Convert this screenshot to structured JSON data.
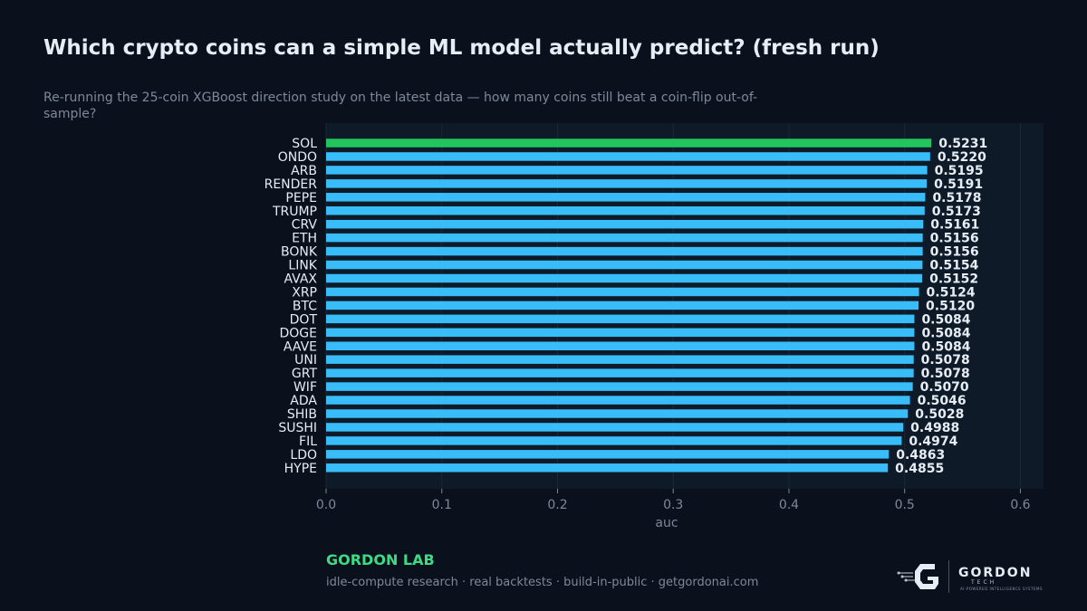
{
  "header": {
    "title": "Which crypto coins can a simple ML model actually predict? (fresh run)",
    "subtitle": "Re-running the 25-coin XGBoost direction study on the latest data — how many coins still beat a coin-flip out-of-sample?"
  },
  "chart_data": {
    "type": "bar",
    "orientation": "horizontal",
    "categories": [
      "SOL",
      "ONDO",
      "ARB",
      "RENDER",
      "PEPE",
      "TRUMP",
      "CRV",
      "ETH",
      "BONK",
      "LINK",
      "AVAX",
      "XRP",
      "BTC",
      "DOT",
      "DOGE",
      "AAVE",
      "UNI",
      "GRT",
      "WIF",
      "ADA",
      "SHIB",
      "SUSHI",
      "FIL",
      "LDO",
      "HYPE"
    ],
    "values": [
      0.5231,
      0.522,
      0.5195,
      0.5191,
      0.5178,
      0.5173,
      0.5161,
      0.5156,
      0.5156,
      0.5154,
      0.5152,
      0.5124,
      0.512,
      0.5084,
      0.5084,
      0.5084,
      0.5078,
      0.5078,
      0.507,
      0.5046,
      0.5028,
      0.4988,
      0.4974,
      0.4863,
      0.4855
    ],
    "value_labels": [
      "0.5231",
      "0.5220",
      "0.5195",
      "0.5191",
      "0.5178",
      "0.5173",
      "0.5161",
      "0.5156",
      "0.5156",
      "0.5154",
      "0.5152",
      "0.5124",
      "0.5120",
      "0.5084",
      "0.5084",
      "0.5084",
      "0.5078",
      "0.5078",
      "0.5070",
      "0.5046",
      "0.5028",
      "0.4988",
      "0.4974",
      "0.4863",
      "0.4855"
    ],
    "highlight_index": 0,
    "xlabel": "auc",
    "ylabel": "",
    "xlim": [
      0,
      0.62
    ],
    "xticks": [
      0.0,
      0.1,
      0.2,
      0.3,
      0.4,
      0.5,
      0.6
    ],
    "xtick_labels": [
      "0.0",
      "0.1",
      "0.2",
      "0.3",
      "0.4",
      "0.5",
      "0.6"
    ],
    "grid": "vertical",
    "legend": "none",
    "colors": {
      "bar": "#38bdf8",
      "highlight": "#22c55e",
      "plot_bg": "#0e1a28",
      "grid": "#1b2838",
      "text": "#e6edf5",
      "muted": "#7d8898"
    }
  },
  "footer": {
    "brand": "GORDON LAB",
    "tagline": "idle-compute research · real backtests · build-in-public · getgordonai.com"
  },
  "logo": {
    "name": "GORDON",
    "sub": "TECH",
    "caption": "AI-POWERED INTELLIGENCE SYSTEMS",
    "icon": "gordon-g-icon"
  }
}
